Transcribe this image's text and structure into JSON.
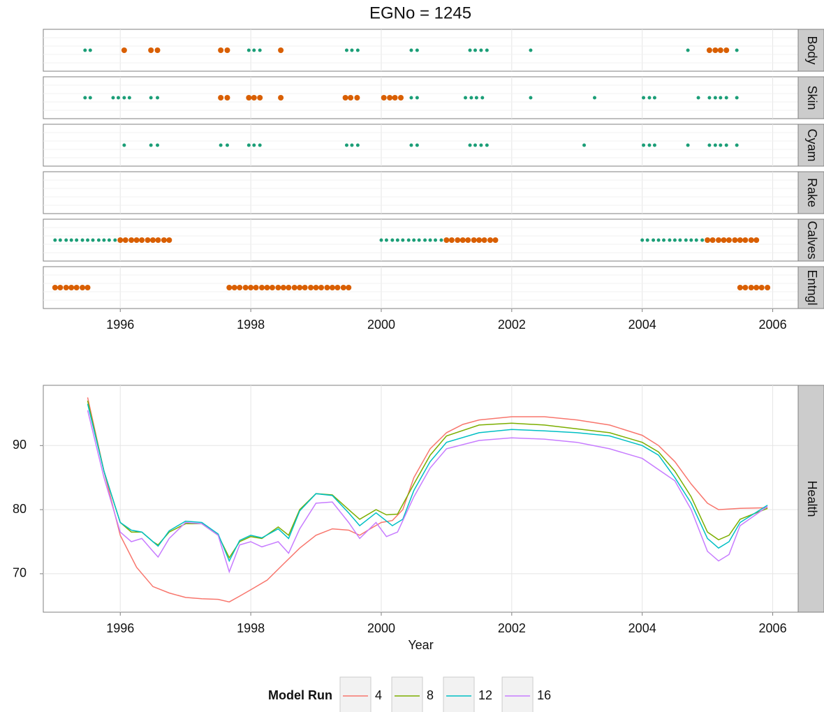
{
  "chart_data": [
    {
      "type": "strip",
      "title": "EGNo = 1245",
      "xlim": [
        1994.82,
        2006.39
      ],
      "xticks": [
        1996,
        1998,
        2000,
        2002,
        2004,
        2006
      ],
      "grid": true,
      "panels": [
        {
          "label": "Body",
          "series": [
            {
              "color": "#1b9e77",
              "size": 2.5,
              "x": [
                1995.46,
                1995.54,
                1997.97,
                1998.05,
                1998.14,
                1999.47,
                1999.55,
                1999.64,
                2000.46,
                2000.55,
                2001.36,
                2001.44,
                2001.53,
                2001.62,
                2002.29,
                2004.7,
                2005.45
              ]
            },
            {
              "color": "#d95f02",
              "size": 4,
              "x": [
                1996.06,
                1996.47,
                1996.57,
                1997.54,
                1997.64,
                1998.46,
                2005.03,
                2005.12,
                2005.2,
                2005.29
              ]
            }
          ]
        },
        {
          "label": "Skin",
          "series": [
            {
              "color": "#1b9e77",
              "size": 2.5,
              "x": [
                1995.46,
                1995.54,
                1995.89,
                1995.97,
                1996.06,
                1996.14,
                1996.47,
                1996.57,
                2000.46,
                2000.55,
                2001.29,
                2001.38,
                2001.46,
                2001.55,
                2002.29,
                2003.27,
                2004.02,
                2004.11,
                2004.19,
                2004.86,
                2005.03,
                2005.12,
                2005.2,
                2005.29,
                2005.45
              ]
            },
            {
              "color": "#d95f02",
              "size": 4,
              "x": [
                1997.54,
                1997.64,
                1997.97,
                1998.05,
                1998.14,
                1998.46,
                1999.45,
                1999.53,
                1999.63,
                2000.04,
                2000.13,
                2000.21,
                2000.3
              ]
            }
          ]
        },
        {
          "label": "Cyam",
          "series": [
            {
              "color": "#1b9e77",
              "size": 2.5,
              "x": [
                1996.06,
                1996.47,
                1996.57,
                1997.54,
                1997.64,
                1997.97,
                1998.05,
                1998.14,
                1999.47,
                1999.55,
                1999.64,
                2000.46,
                2000.55,
                2001.36,
                2001.44,
                2001.53,
                2001.62,
                2003.11,
                2004.02,
                2004.11,
                2004.19,
                2004.7,
                2005.03,
                2005.12,
                2005.2,
                2005.29,
                2005.45
              ]
            }
          ]
        },
        {
          "label": "Rake",
          "series": []
        },
        {
          "label": "Calves",
          "series": [
            {
              "color": "#1b9e77",
              "size": 2.5,
              "x": [
                1995.0,
                1995.08,
                1995.17,
                1995.25,
                1995.33,
                1995.42,
                1995.5,
                1995.58,
                1995.67,
                1995.75,
                1995.83,
                1995.92,
                2000.0,
                2000.08,
                2000.17,
                2000.25,
                2000.33,
                2000.42,
                2000.5,
                2000.58,
                2000.67,
                2000.75,
                2000.83,
                2000.92,
                2004.0,
                2004.08,
                2004.17,
                2004.25,
                2004.33,
                2004.42,
                2004.5,
                2004.58,
                2004.67,
                2004.75,
                2004.83,
                2004.92
              ]
            },
            {
              "color": "#d95f02",
              "size": 4,
              "x": [
                1996.0,
                1996.08,
                1996.17,
                1996.25,
                1996.33,
                1996.42,
                1996.5,
                1996.58,
                1996.67,
                1996.75,
                2001.0,
                2001.08,
                2001.17,
                2001.25,
                2001.33,
                2001.42,
                2001.5,
                2001.58,
                2001.67,
                2001.75,
                2005.0,
                2005.08,
                2005.17,
                2005.25,
                2005.33,
                2005.42,
                2005.5,
                2005.58,
                2005.67,
                2005.75
              ]
            }
          ]
        },
        {
          "label": "Entngl",
          "series": [
            {
              "color": "#d95f02",
              "size": 4,
              "x": [
                1995.0,
                1995.08,
                1995.17,
                1995.25,
                1995.33,
                1995.42,
                1995.5,
                1997.67,
                1997.75,
                1997.83,
                1997.92,
                1998.0,
                1998.08,
                1998.17,
                1998.25,
                1998.33,
                1998.42,
                1998.5,
                1998.58,
                1998.67,
                1998.75,
                1998.83,
                1998.92,
                1999.0,
                1999.08,
                1999.17,
                1999.25,
                1999.33,
                1999.42,
                1999.5,
                2005.5,
                2005.58,
                2005.67,
                2005.75,
                2005.83,
                2005.92
              ]
            }
          ]
        }
      ]
    },
    {
      "type": "line",
      "strip_label": "Health",
      "xlabel": "Year",
      "xlim": [
        1994.82,
        2006.39
      ],
      "xticks": [
        1996,
        1998,
        2000,
        2002,
        2004,
        2006
      ],
      "ylim": [
        64,
        99.4
      ],
      "yticks": [
        70,
        80,
        90
      ],
      "grid": true,
      "legend": "bottom",
      "legend_title": "Model Run",
      "series": [
        {
          "name": "4",
          "color": "#f8766d",
          "x": [
            1995.5,
            1995.75,
            1996,
            1996.25,
            1996.5,
            1996.75,
            1997,
            1997.25,
            1997.5,
            1997.67,
            1997.83,
            1998,
            1998.25,
            1998.5,
            1998.75,
            1999,
            1999.25,
            1999.5,
            1999.67,
            1999.83,
            2000,
            2000.17,
            2000.33,
            2000.5,
            2000.75,
            2001,
            2001.25,
            2001.5,
            2002,
            2002.5,
            2003,
            2003.5,
            2004,
            2004.25,
            2004.5,
            2004.75,
            2005,
            2005.17,
            2005.5,
            2005.92
          ],
          "values": [
            97.5,
            86,
            76,
            71,
            68,
            67,
            66.3,
            66.1,
            66,
            65.6,
            66.5,
            67.5,
            69,
            71.5,
            74,
            76,
            77,
            76.8,
            76,
            77,
            78,
            78.3,
            80,
            85,
            89.5,
            92,
            93.3,
            94,
            94.5,
            94.5,
            94,
            93.2,
            91.6,
            90,
            87.5,
            84,
            81,
            80,
            80.2,
            80.3
          ]
        },
        {
          "name": "8",
          "color": "#7cae00",
          "x": [
            1995.5,
            1995.75,
            1996,
            1996.17,
            1996.33,
            1996.5,
            1996.58,
            1996.75,
            1997,
            1997.25,
            1997.5,
            1997.67,
            1997.83,
            1998,
            1998.17,
            1998.42,
            1998.58,
            1998.75,
            1999,
            1999.25,
            1999.5,
            1999.67,
            1999.92,
            2000.08,
            2000.25,
            2000.5,
            2000.75,
            2001,
            2001.5,
            2002,
            2002.5,
            2003,
            2003.5,
            2004,
            2004.25,
            2004.5,
            2004.75,
            2005,
            2005.17,
            2005.33,
            2005.5,
            2005.92
          ],
          "values": [
            97,
            86,
            78,
            76.5,
            76.5,
            75,
            74.5,
            76.5,
            77.8,
            77.8,
            76,
            72.5,
            75,
            75.8,
            75.5,
            77.3,
            76,
            80,
            82.5,
            82.3,
            80,
            78.5,
            80,
            79.2,
            79.3,
            84,
            88.5,
            91.5,
            93.2,
            93.5,
            93.2,
            92.6,
            92,
            90.5,
            89,
            86,
            82,
            76.5,
            75.3,
            76,
            78.5,
            80.2
          ]
        },
        {
          "name": "12",
          "color": "#00bfc4",
          "x": [
            1995.5,
            1995.75,
            1996,
            1996.17,
            1996.33,
            1996.5,
            1996.58,
            1996.75,
            1997,
            1997.25,
            1997.5,
            1997.67,
            1997.83,
            1998,
            1998.17,
            1998.42,
            1998.58,
            1998.75,
            1999,
            1999.25,
            1999.5,
            1999.67,
            1999.92,
            2000.17,
            2000.33,
            2000.5,
            2000.75,
            2001,
            2001.5,
            2002,
            2002.5,
            2003,
            2003.5,
            2004,
            2004.25,
            2004.5,
            2004.75,
            2005,
            2005.17,
            2005.33,
            2005.5,
            2005.92
          ],
          "values": [
            96.5,
            86,
            78,
            76.8,
            76.5,
            75,
            74.3,
            76.7,
            78.2,
            78,
            76.2,
            72,
            75.2,
            76,
            75.6,
            77,
            75.5,
            79.8,
            82.5,
            82.2,
            79.5,
            77.5,
            79.5,
            77.5,
            78.5,
            83,
            87.5,
            90.5,
            92,
            92.5,
            92.3,
            92,
            91.5,
            90,
            88.5,
            85,
            81,
            75.5,
            74,
            75,
            78,
            80.7
          ]
        },
        {
          "name": "16",
          "color": "#c77cff",
          "x": [
            1995.5,
            1995.75,
            1996,
            1996.17,
            1996.33,
            1996.5,
            1996.58,
            1996.75,
            1997,
            1997.25,
            1997.5,
            1997.67,
            1997.83,
            1998,
            1998.17,
            1998.42,
            1998.58,
            1998.75,
            1999,
            1999.25,
            1999.5,
            1999.67,
            1999.92,
            2000.08,
            2000.25,
            2000.5,
            2000.75,
            2001,
            2001.5,
            2002,
            2002.5,
            2003,
            2003.5,
            2004,
            2004.5,
            2004.75,
            2005,
            2005.17,
            2005.33,
            2005.5,
            2005.92
          ],
          "values": [
            95.5,
            85,
            76.5,
            75,
            75.5,
            73.5,
            72.6,
            75.5,
            78,
            77.8,
            76,
            70.3,
            74.5,
            75,
            74.2,
            75,
            73.2,
            77,
            81,
            81.2,
            78,
            75.5,
            78,
            75.8,
            76.5,
            82,
            86.5,
            89.5,
            90.8,
            91.2,
            91,
            90.5,
            89.5,
            88,
            84.5,
            80,
            73.5,
            72,
            73,
            77.5,
            80.5
          ]
        }
      ]
    }
  ]
}
